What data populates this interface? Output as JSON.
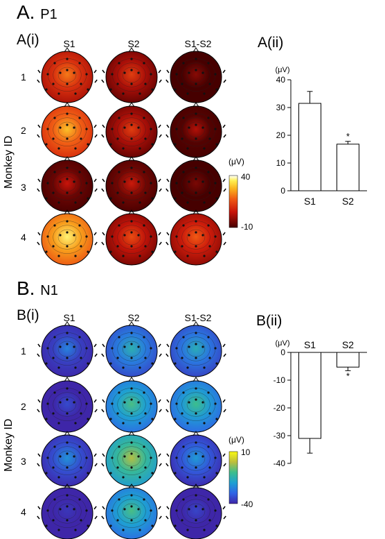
{
  "panelA": {
    "title_letter": "A.",
    "title_component": "P1",
    "sub_i": "A(i)",
    "sub_ii": "A(ii)",
    "columns": [
      "S1",
      "S2",
      "S1-S2"
    ],
    "rows": [
      "1",
      "2",
      "3",
      "4"
    ],
    "ylabel": "Monkey ID",
    "colorbar": {
      "unit": "(μV)",
      "max": "40",
      "min": "-10",
      "colormap": "hot"
    },
    "map_intensity": [
      [
        0.62,
        0.45,
        0.15
      ],
      [
        0.78,
        0.45,
        0.25
      ],
      [
        0.3,
        0.32,
        0.12
      ],
      [
        0.92,
        0.5,
        0.55
      ]
    ]
  },
  "panelB": {
    "title_letter": "B.",
    "title_component": "N1",
    "sub_i": "B(i)",
    "sub_ii": "B(ii)",
    "columns": [
      "S1",
      "S2",
      "S1-S2"
    ],
    "rows": [
      "1",
      "2",
      "3",
      "4"
    ],
    "ylabel": "Monkey ID",
    "colorbar": {
      "unit": "(μV)",
      "max": "10",
      "min": "-40",
      "colormap": "parula"
    },
    "map_intensity": [
      [
        0.3,
        0.5,
        0.48
      ],
      [
        0.12,
        0.62,
        0.6
      ],
      [
        0.35,
        0.78,
        0.38
      ],
      [
        0.05,
        0.62,
        0.1
      ]
    ]
  },
  "chart_data": [
    {
      "type": "bar",
      "panel": "A(ii)",
      "categories": [
        "S1",
        "S2"
      ],
      "values": [
        31.5,
        16.8
      ],
      "errors": [
        4.3,
        1.0
      ],
      "significance": [
        "",
        "*"
      ],
      "ylabel": "(μV)",
      "ylim": [
        0,
        40
      ],
      "yticks": [
        0,
        10,
        20,
        30,
        40
      ]
    },
    {
      "type": "bar",
      "panel": "B(ii)",
      "categories": [
        "S1",
        "S2"
      ],
      "values": [
        -31,
        -5.3
      ],
      "errors": [
        5.3,
        1.3
      ],
      "significance": [
        "",
        "*"
      ],
      "ylabel": "(μV)",
      "ylim": [
        -40,
        0
      ],
      "yticks": [
        0,
        -10,
        -20,
        -30,
        -40
      ]
    }
  ]
}
